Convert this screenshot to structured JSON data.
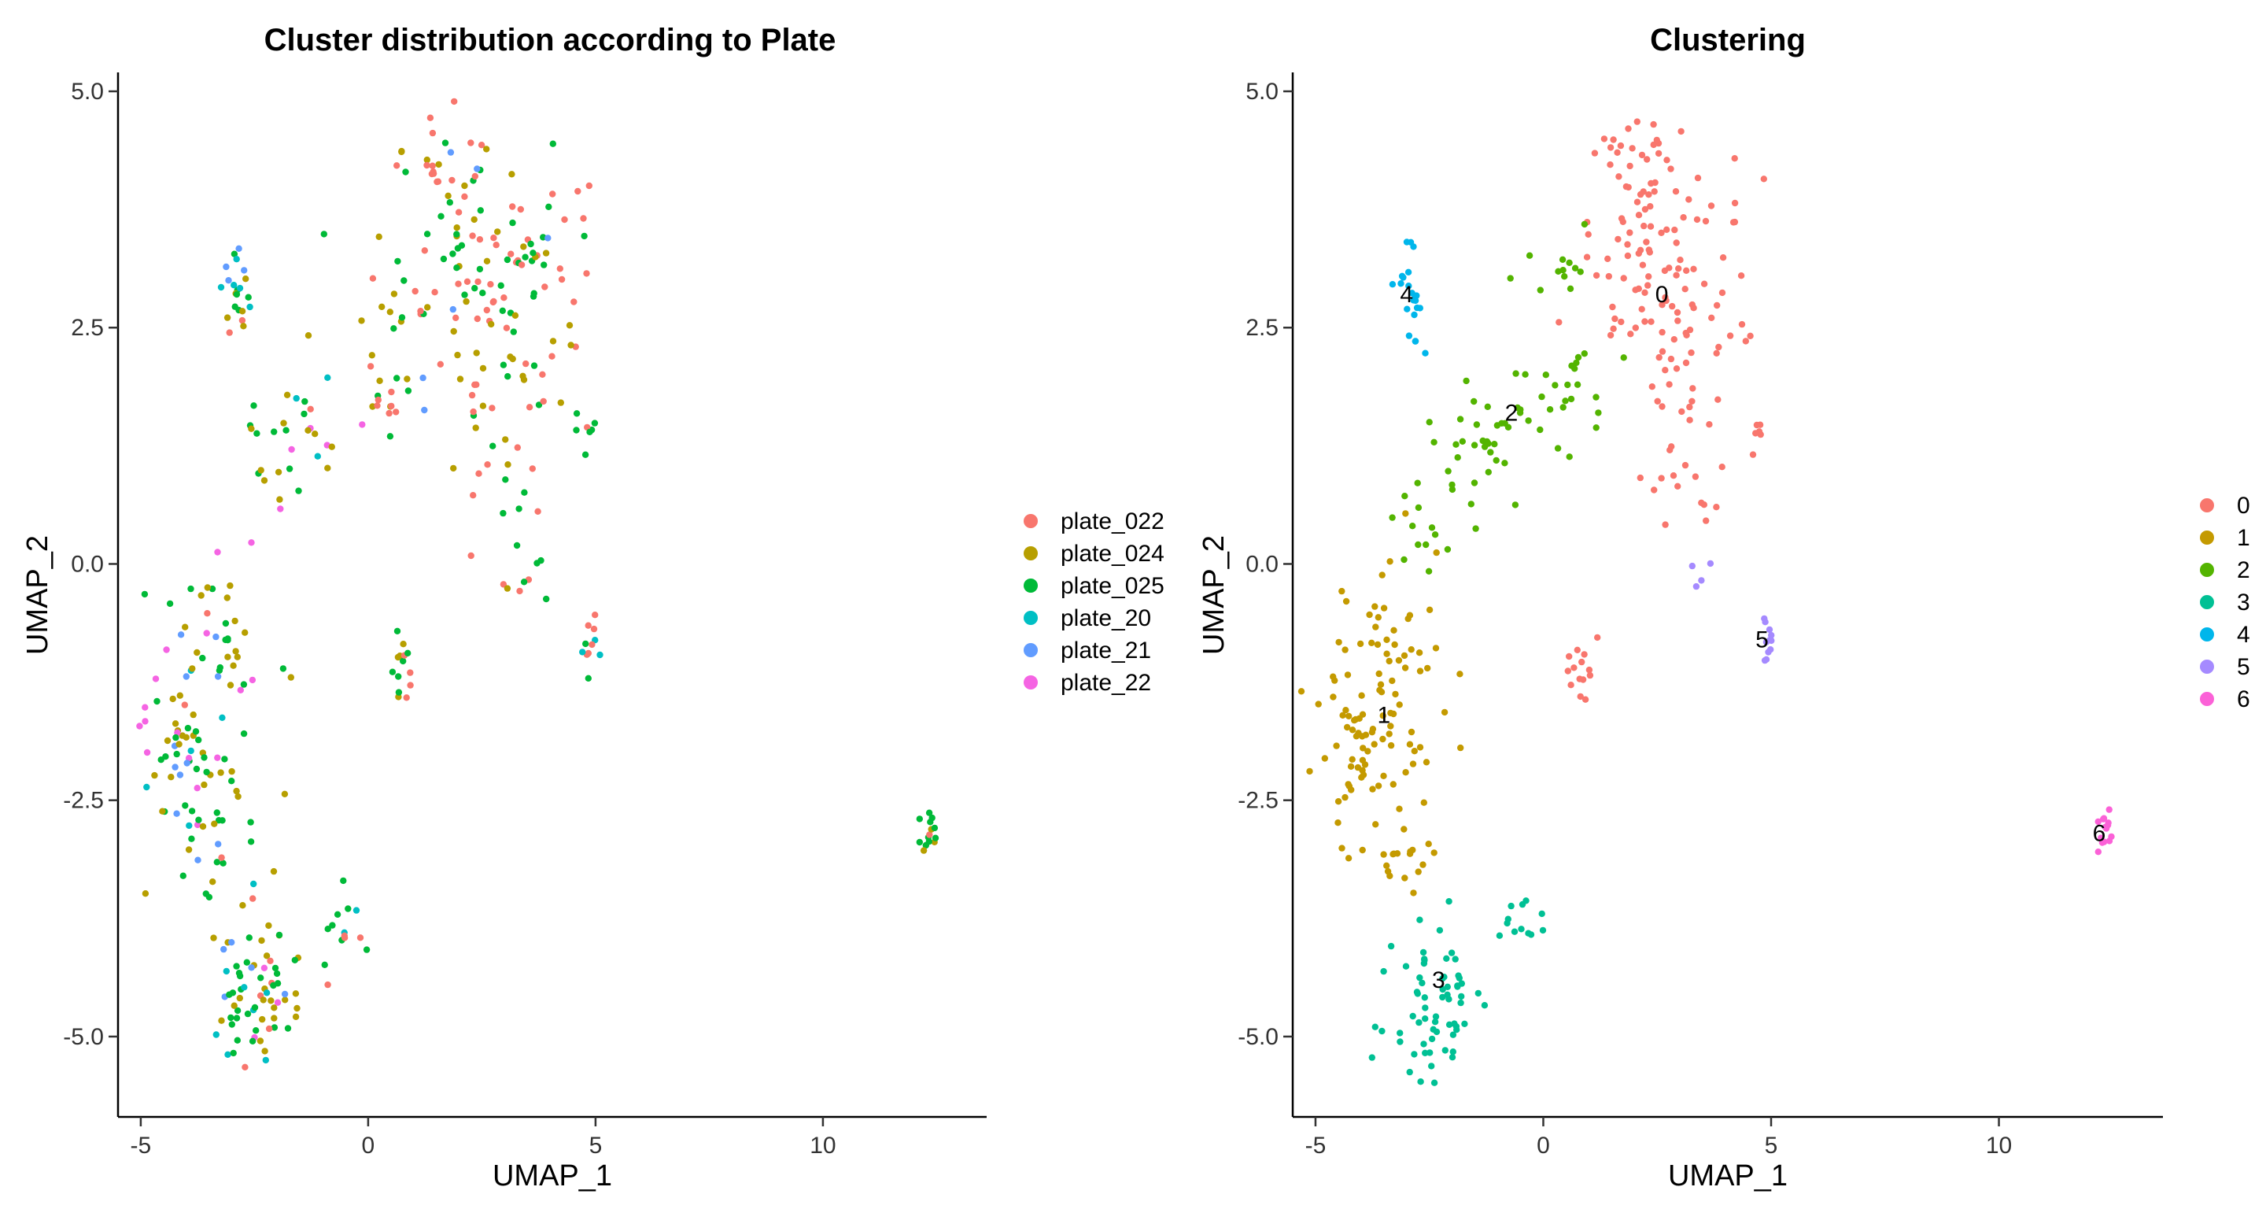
{
  "chart_data": [
    {
      "type": "scatter",
      "title": "Cluster distribution according to Plate",
      "xlabel": "UMAP_1",
      "ylabel": "UMAP_2",
      "xlim": [
        -5.5,
        13.6
      ],
      "ylim": [
        -5.85,
        5.2
      ],
      "xticks": [
        -5,
        0,
        5,
        10
      ],
      "yticks": [
        -5.0,
        -2.5,
        0.0,
        2.5,
        5.0
      ],
      "xtick_labels": [
        "-5",
        "0",
        "5",
        "10"
      ],
      "ytick_labels": [
        "-5.0",
        "-2.5",
        "0.0",
        "2.5",
        "5.0"
      ],
      "grid": false,
      "legend_position": "right",
      "legend": [
        {
          "name": "plate_022",
          "color": "#F8766D"
        },
        {
          "name": "plate_024",
          "color": "#B79F00"
        },
        {
          "name": "plate_025",
          "color": "#00BA38"
        },
        {
          "name": "plate_20",
          "color": "#00BFC4"
        },
        {
          "name": "plate_21",
          "color": "#619CFF"
        },
        {
          "name": "plate_22",
          "color": "#F564E3"
        }
      ],
      "point_groups": [
        {
          "cx": 1.8,
          "cy": 4.3,
          "sx": 0.55,
          "sy": 0.25,
          "n": 25,
          "mix": [
            0.3,
            0.25,
            0.35,
            0.0,
            0.1,
            0.0
          ]
        },
        {
          "cx": 2.7,
          "cy": 3.3,
          "sx": 1.05,
          "sy": 0.45,
          "n": 85,
          "mix": [
            0.42,
            0.22,
            0.32,
            0.01,
            0.03,
            0.0
          ]
        },
        {
          "cx": 1.2,
          "cy": 2.7,
          "sx": 0.95,
          "sy": 0.4,
          "n": 30,
          "mix": [
            0.2,
            0.3,
            0.48,
            0.0,
            0.02,
            0.0
          ]
        },
        {
          "cx": 3.3,
          "cy": 2.1,
          "sx": 0.75,
          "sy": 0.4,
          "n": 25,
          "mix": [
            0.5,
            0.3,
            0.2,
            0.0,
            0.0,
            0.0
          ]
        },
        {
          "cx": 0.7,
          "cy": 1.7,
          "sx": 0.35,
          "sy": 0.22,
          "n": 14,
          "mix": [
            0.35,
            0.3,
            0.25,
            0.0,
            0.1,
            0.0
          ]
        },
        {
          "cx": 3.0,
          "cy": 1.0,
          "sx": 0.5,
          "sy": 0.4,
          "n": 18,
          "mix": [
            0.55,
            0.25,
            0.2,
            0.0,
            0.0,
            0.0
          ]
        },
        {
          "cx": 3.5,
          "cy": -0.1,
          "sx": 0.4,
          "sy": 0.25,
          "n": 8,
          "mix": [
            0.3,
            0.5,
            0.2,
            0.0,
            0.0,
            0.0
          ]
        },
        {
          "cx": 4.8,
          "cy": 1.4,
          "sx": 0.15,
          "sy": 0.22,
          "n": 7,
          "mix": [
            0.4,
            0.0,
            0.6,
            0.0,
            0.0,
            0.0
          ]
        },
        {
          "cx": 0.8,
          "cy": -1.15,
          "sx": 0.15,
          "sy": 0.2,
          "n": 14,
          "mix": [
            0.2,
            0.3,
            0.5,
            0.0,
            0.0,
            0.0
          ]
        },
        {
          "cx": 4.9,
          "cy": -0.85,
          "sx": 0.1,
          "sy": 0.15,
          "n": 11,
          "mix": [
            0.4,
            0.0,
            0.45,
            0.15,
            0.0,
            0.0
          ]
        },
        {
          "cx": -2.9,
          "cy": 2.85,
          "sx": 0.2,
          "sy": 0.3,
          "n": 22,
          "mix": [
            0.05,
            0.2,
            0.35,
            0.2,
            0.2,
            0.0
          ]
        },
        {
          "cx": -1.6,
          "cy": 1.3,
          "sx": 0.6,
          "sy": 0.4,
          "n": 30,
          "mix": [
            0.05,
            0.3,
            0.35,
            0.1,
            0.05,
            0.15
          ]
        },
        {
          "cx": -3.4,
          "cy": -0.9,
          "sx": 0.65,
          "sy": 0.55,
          "n": 45,
          "mix": [
            0.05,
            0.4,
            0.25,
            0.05,
            0.05,
            0.2
          ]
        },
        {
          "cx": -4.0,
          "cy": -2.0,
          "sx": 0.5,
          "sy": 0.55,
          "n": 55,
          "mix": [
            0.03,
            0.3,
            0.4,
            0.1,
            0.07,
            0.1
          ]
        },
        {
          "cx": -3.1,
          "cy": -2.9,
          "sx": 0.5,
          "sy": 0.45,
          "n": 25,
          "mix": [
            0.1,
            0.35,
            0.35,
            0.05,
            0.05,
            0.1
          ]
        },
        {
          "cx": -2.4,
          "cy": -4.6,
          "sx": 0.5,
          "sy": 0.35,
          "n": 70,
          "mix": [
            0.15,
            0.25,
            0.35,
            0.12,
            0.08,
            0.05
          ]
        },
        {
          "cx": -0.5,
          "cy": -3.8,
          "sx": 0.22,
          "sy": 0.18,
          "n": 12,
          "mix": [
            0.2,
            0.15,
            0.4,
            0.25,
            0.0,
            0.0
          ]
        },
        {
          "cx": 12.35,
          "cy": -2.85,
          "sx": 0.12,
          "sy": 0.12,
          "n": 14,
          "mix": [
            0.05,
            0.1,
            0.85,
            0.0,
            0.0,
            0.0
          ]
        }
      ]
    },
    {
      "type": "scatter",
      "title": "Clustering",
      "xlabel": "UMAP_1",
      "ylabel": "UMAP_2",
      "xlim": [
        -5.5,
        13.6
      ],
      "ylim": [
        -5.85,
        5.2
      ],
      "xticks": [
        -5,
        0,
        5,
        10
      ],
      "yticks": [
        -5.0,
        -2.5,
        0.0,
        2.5,
        5.0
      ],
      "xtick_labels": [
        "-5",
        "0",
        "5",
        "10"
      ],
      "ytick_labels": [
        "-5.0",
        "-2.5",
        "0.0",
        "2.5",
        "5.0"
      ],
      "grid": false,
      "legend_position": "right",
      "legend": [
        {
          "name": "0",
          "color": "#F8766D"
        },
        {
          "name": "1",
          "color": "#C49A00"
        },
        {
          "name": "2",
          "color": "#53B400"
        },
        {
          "name": "3",
          "color": "#00C094"
        },
        {
          "name": "4",
          "color": "#00B6EB"
        },
        {
          "name": "5",
          "color": "#A58AFF"
        },
        {
          "name": "6",
          "color": "#FB61D7"
        }
      ],
      "cluster_labels": [
        {
          "label": "0",
          "x": 2.6,
          "y": 2.85
        },
        {
          "label": "1",
          "x": -3.5,
          "y": -1.6
        },
        {
          "label": "2",
          "x": -0.7,
          "y": 1.6
        },
        {
          "label": "3",
          "x": -2.3,
          "y": -4.4
        },
        {
          "label": "4",
          "x": -3.0,
          "y": 2.85
        },
        {
          "label": "5",
          "x": 4.8,
          "y": -0.8
        },
        {
          "label": "6",
          "x": 12.2,
          "y": -2.85
        }
      ],
      "point_groups": [
        {
          "cx": 1.8,
          "cy": 4.3,
          "sx": 0.55,
          "sy": 0.25,
          "n": 25,
          "cluster": 0
        },
        {
          "cx": 2.7,
          "cy": 3.3,
          "sx": 0.95,
          "sy": 0.45,
          "n": 85,
          "cluster": 0
        },
        {
          "cx": 3.3,
          "cy": 2.1,
          "sx": 0.7,
          "sy": 0.4,
          "n": 25,
          "cluster": 0
        },
        {
          "cx": 3.0,
          "cy": 1.0,
          "sx": 0.45,
          "sy": 0.4,
          "n": 18,
          "cluster": 0
        },
        {
          "cx": 4.8,
          "cy": 1.4,
          "sx": 0.12,
          "sy": 0.18,
          "n": 6,
          "cluster": 0
        },
        {
          "cx": 0.8,
          "cy": -1.15,
          "sx": 0.15,
          "sy": 0.2,
          "n": 14,
          "cluster": 0
        },
        {
          "cx": 0.7,
          "cy": 1.8,
          "sx": 0.45,
          "sy": 0.25,
          "n": 20,
          "cluster": 2
        },
        {
          "cx": 0.4,
          "cy": 3.2,
          "sx": 0.4,
          "sy": 0.3,
          "n": 12,
          "cluster": 2
        },
        {
          "cx": -1.4,
          "cy": 1.3,
          "sx": 0.7,
          "sy": 0.45,
          "n": 38,
          "cluster": 2
        },
        {
          "cx": -2.6,
          "cy": 0.4,
          "sx": 0.4,
          "sy": 0.35,
          "n": 12,
          "cluster": 2
        },
        {
          "cx": -3.3,
          "cy": -0.9,
          "sx": 0.6,
          "sy": 0.55,
          "n": 45,
          "cluster": 1
        },
        {
          "cx": -4.1,
          "cy": -2.0,
          "sx": 0.45,
          "sy": 0.55,
          "n": 55,
          "cluster": 1
        },
        {
          "cx": -3.0,
          "cy": -2.9,
          "sx": 0.5,
          "sy": 0.45,
          "n": 25,
          "cluster": 1
        },
        {
          "cx": -2.4,
          "cy": -4.6,
          "sx": 0.5,
          "sy": 0.4,
          "n": 65,
          "cluster": 3
        },
        {
          "cx": -0.5,
          "cy": -3.8,
          "sx": 0.22,
          "sy": 0.18,
          "n": 12,
          "cluster": 3
        },
        {
          "cx": -2.9,
          "cy": 2.85,
          "sx": 0.18,
          "sy": 0.28,
          "n": 22,
          "cluster": 4
        },
        {
          "cx": 4.9,
          "cy": -0.85,
          "sx": 0.1,
          "sy": 0.15,
          "n": 11,
          "cluster": 5
        },
        {
          "cx": 3.4,
          "cy": -0.1,
          "sx": 0.2,
          "sy": 0.15,
          "n": 4,
          "cluster": 5
        },
        {
          "cx": 12.35,
          "cy": -2.85,
          "sx": 0.12,
          "sy": 0.12,
          "n": 14,
          "cluster": 6
        }
      ]
    }
  ]
}
